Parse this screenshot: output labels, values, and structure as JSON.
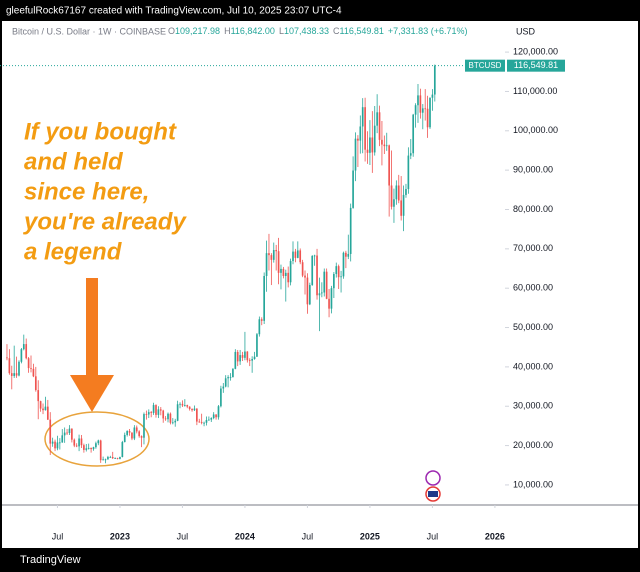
{
  "header": {
    "credit": "gleefulRock67167 created with TradingView.com, Jul 10, 2025 23:07 UTC-4"
  },
  "footer": {
    "brand": "TradingView"
  },
  "chart_data": {
    "type": "candlestick",
    "symbol": "Bitcoin / U.S. Dollar · 1W · COINBASE",
    "legend": [
      {
        "key": "O",
        "value": "109,217.98"
      },
      {
        "key": "H",
        "value": "116,842.00"
      },
      {
        "key": "L",
        "value": "107,438.33"
      },
      {
        "key": "C",
        "value": "116,549.81"
      }
    ],
    "change": "+7,331.83 (+6.71%)",
    "currency": "USD",
    "symbol_tag": "BTCUSD",
    "last_price": {
      "value": 116549.81,
      "label": "116,549.81"
    },
    "annotation": [
      "If you bought",
      "and held",
      "since here,",
      "you're already",
      "a legend"
    ],
    "up_color": "#26a69a",
    "down_color": "#ef5350",
    "grid": false,
    "xlim": [
      -2.9,
      207.2
    ],
    "xticks": [
      {
        "value": 21,
        "label": "Jul"
      },
      {
        "value": 47,
        "label": "2023"
      },
      {
        "value": 73,
        "label": "Jul"
      },
      {
        "value": 99,
        "label": "2024"
      },
      {
        "value": 125,
        "label": "Jul"
      },
      {
        "value": 151,
        "label": "2025"
      },
      {
        "value": 177,
        "label": "Jul"
      },
      {
        "value": 203,
        "label": "2026"
      }
    ],
    "ylim": [
      4900,
      127650
    ],
    "yticks": [
      {
        "value": 10000,
        "label": "10,000.00"
      },
      {
        "value": 20000,
        "label": "20,000.00"
      },
      {
        "value": 30000,
        "label": "30,000.00"
      },
      {
        "value": 40000,
        "label": "40,000.00"
      },
      {
        "value": 50000,
        "label": "50,000.00"
      },
      {
        "value": 60000,
        "label": "60,000.00"
      },
      {
        "value": 70000,
        "label": "70,000.00"
      },
      {
        "value": 80000,
        "label": "80,000.00"
      },
      {
        "value": 90000,
        "label": "90,000.00"
      },
      {
        "value": 100000,
        "label": "100,000.00"
      },
      {
        "value": 110000,
        "label": "110,000.00"
      },
      {
        "value": 120000,
        "label": "120,000.00"
      }
    ],
    "open": [
      42400,
      42200,
      38400,
      37700,
      38400,
      37800,
      41300,
      44500,
      45800,
      42200,
      39700,
      39500,
      37600,
      34100,
      31300,
      29400,
      29000,
      29900,
      26600,
      20500,
      21000,
      19300,
      20800,
      20800,
      22600,
      23300,
      23200,
      24300,
      21500,
      20000,
      19800,
      21800,
      20100,
      18900,
      19300,
      19400,
      19100,
      19600,
      20600,
      21300,
      16300,
      16500,
      16500,
      17100,
      17100,
      16800,
      16800,
      16600,
      17100,
      20900,
      22700,
      23700,
      23300,
      21800,
      24600,
      23600,
      22400,
      22000,
      28000,
      27900,
      28500,
      28300,
      30300,
      27800,
      29200,
      28900,
      26900,
      26700,
      28100,
      25800,
      25900,
      26300,
      30500,
      30600,
      30200,
      30300,
      29900,
      29300,
      29000,
      29400,
      26100,
      26000,
      25800,
      25800,
      26500,
      26600,
      27000,
      27900,
      27200,
      30000,
      34500,
      35000,
      37100,
      37400,
      37400,
      39500,
      43800,
      41400,
      43000,
      42300,
      43900,
      41700,
      41600,
      42000,
      42600,
      48300,
      52100,
      51700,
      63100,
      68900,
      68400,
      67200,
      69700,
      69400,
      63900,
      64900,
      63100,
      63900,
      61500,
      66900,
      69300,
      67700,
      69600,
      66600,
      63200,
      62700,
      55900,
      60800,
      68200,
      68300,
      58200,
      58700,
      58900,
      64200,
      57300,
      54800,
      60000,
      63600,
      65600,
      62800,
      63000,
      69000,
      68000,
      68700,
      80400,
      89900,
      98000,
      97500,
      101100,
      106000,
      95200,
      94400,
      98300,
      94500,
      101300,
      104700,
      97700,
      96500,
      96100,
      96300,
      86100,
      80700,
      82600,
      86100,
      82300,
      78400,
      83700,
      85200,
      93700,
      94300,
      104100,
      106500,
      109000,
      104600,
      105700,
      105600,
      100900,
      108400,
      109217.98
    ],
    "high": [
      45800,
      44500,
      40300,
      45400,
      42600,
      41700,
      44800,
      48200,
      47200,
      42500,
      42900,
      40800,
      40000,
      36600,
      31400,
      30700,
      32400,
      31600,
      28500,
      22000,
      21500,
      22500,
      21900,
      24200,
      24600,
      24200,
      25200,
      24400,
      21800,
      20600,
      22800,
      22700,
      20500,
      20400,
      20500,
      19500,
      19700,
      21000,
      21500,
      21500,
      17200,
      16700,
      17400,
      17400,
      18400,
      17000,
      16900,
      17200,
      21200,
      23300,
      23900,
      24200,
      23400,
      25200,
      25100,
      23900,
      22600,
      28400,
      28900,
      29200,
      28800,
      30900,
      30500,
      30000,
      29800,
      29100,
      27500,
      28400,
      28400,
      27000,
      26800,
      31400,
      31000,
      31500,
      31800,
      30400,
      30000,
      29500,
      30200,
      29500,
      26800,
      28100,
      26100,
      27400,
      27400,
      27200,
      28500,
      28000,
      30300,
      35200,
      35900,
      37900,
      37900,
      38400,
      39700,
      44500,
      44300,
      44300,
      43800,
      48900,
      44000,
      42200,
      42700,
      43800,
      48600,
      52800,
      52600,
      64000,
      72100,
      73800,
      68900,
      71600,
      71000,
      72800,
      66000,
      65400,
      64700,
      65500,
      67500,
      71900,
      70000,
      71900,
      70100,
      67200,
      64500,
      63800,
      61400,
      68400,
      68500,
      70000,
      62700,
      61500,
      65000,
      65000,
      59800,
      60600,
      64100,
      66500,
      66000,
      64400,
      69300,
      69500,
      73600,
      81500,
      93500,
      99600,
      98900,
      103900,
      108300,
      108400,
      99900,
      102700,
      105000,
      106300,
      109300,
      106400,
      102500,
      98800,
      99500,
      96500,
      95000,
      85300,
      87400,
      88800,
      88500,
      86100,
      86500,
      95800,
      97900,
      104300,
      107000,
      111900,
      110700,
      106800,
      110600,
      108900,
      108500,
      110600,
      116842
    ],
    "low": [
      41700,
      38000,
      34300,
      37200,
      37200,
      37600,
      40900,
      44200,
      41900,
      38500,
      38600,
      37400,
      33700,
      26700,
      28600,
      28000,
      28900,
      26500,
      17600,
      19700,
      18600,
      18800,
      19000,
      20700,
      20700,
      22700,
      22700,
      20800,
      19600,
      19600,
      18600,
      19400,
      18200,
      18500,
      19000,
      18200,
      18700,
      19200,
      20100,
      15600,
      16200,
      15500,
      16400,
      16900,
      16600,
      16600,
      16500,
      16500,
      17000,
      20800,
      22300,
      22500,
      21400,
      21400,
      23100,
      22000,
      19600,
      20300,
      26600,
      27000,
      27200,
      27800,
      27100,
      27000,
      27700,
      25800,
      26300,
      25900,
      25400,
      25400,
      24800,
      26200,
      29500,
      29800,
      29900,
      29500,
      28900,
      28600,
      28800,
      25200,
      25800,
      25400,
      24900,
      25100,
      26300,
      26000,
      26700,
      26600,
      26600,
      29700,
      33400,
      34800,
      34800,
      36500,
      37300,
      39400,
      40200,
      40500,
      41500,
      41700,
      41100,
      40200,
      38500,
      41800,
      42500,
      47700,
      50600,
      50900,
      59100,
      64500,
      60800,
      66500,
      64500,
      61000,
      59700,
      62500,
      56600,
      60200,
      60700,
      66100,
      66600,
      67600,
      66100,
      62800,
      58400,
      53500,
      55700,
      60600,
      65700,
      57100,
      49100,
      57700,
      57900,
      57200,
      52600,
      53600,
      57500,
      62700,
      59800,
      58900,
      62400,
      65100,
      67400,
      66800,
      80200,
      87200,
      90800,
      94200,
      94300,
      92200,
      91600,
      91300,
      89300,
      93700,
      99400,
      96100,
      91200,
      94100,
      94900,
      78200,
      80000,
      76600,
      81200,
      81600,
      77200,
      74500,
      83000,
      84000,
      92800,
      93400,
      100800,
      102000,
      103100,
      100400,
      102600,
      98200,
      100500,
      105100,
      107438.33
    ],
    "close": [
      42200,
      38400,
      37700,
      38400,
      37800,
      41300,
      44500,
      45800,
      42200,
      39700,
      39500,
      37600,
      34100,
      31300,
      29400,
      29000,
      29900,
      26600,
      20500,
      21000,
      19300,
      20800,
      20800,
      22600,
      23300,
      23200,
      24300,
      21500,
      20000,
      19800,
      21800,
      20100,
      18900,
      19300,
      19400,
      19100,
      19600,
      20600,
      21300,
      16300,
      16500,
      16500,
      17100,
      17100,
      16800,
      16800,
      16600,
      17100,
      20900,
      22700,
      23700,
      23300,
      21800,
      24600,
      23600,
      22400,
      22000,
      28000,
      27900,
      28500,
      28300,
      30300,
      27800,
      29200,
      28900,
      26900,
      26700,
      28100,
      25800,
      25900,
      26300,
      30500,
      30600,
      30200,
      30300,
      29900,
      29300,
      29000,
      29400,
      26100,
      26000,
      25800,
      25800,
      26500,
      26600,
      27000,
      27900,
      27200,
      30000,
      34500,
      35000,
      37100,
      37400,
      37400,
      39500,
      43800,
      41400,
      43000,
      42300,
      43900,
      41700,
      41600,
      42000,
      42600,
      48300,
      52100,
      51700,
      63100,
      68900,
      68400,
      67200,
      69700,
      69400,
      63900,
      64900,
      63100,
      63900,
      61500,
      66900,
      69300,
      67700,
      69600,
      66600,
      63200,
      62700,
      55900,
      60800,
      68200,
      68300,
      58200,
      58700,
      58900,
      64200,
      57300,
      54800,
      60000,
      63600,
      65600,
      62800,
      63000,
      69000,
      68000,
      68700,
      80400,
      89900,
      98000,
      97500,
      101100,
      106000,
      95200,
      94400,
      98300,
      94500,
      101300,
      104700,
      97700,
      96500,
      96100,
      96300,
      86100,
      80700,
      82600,
      86100,
      82300,
      78400,
      83700,
      85200,
      93700,
      94300,
      104100,
      106500,
      109000,
      104600,
      105700,
      105600,
      100900,
      108400,
      109200,
      116549.81
    ]
  }
}
